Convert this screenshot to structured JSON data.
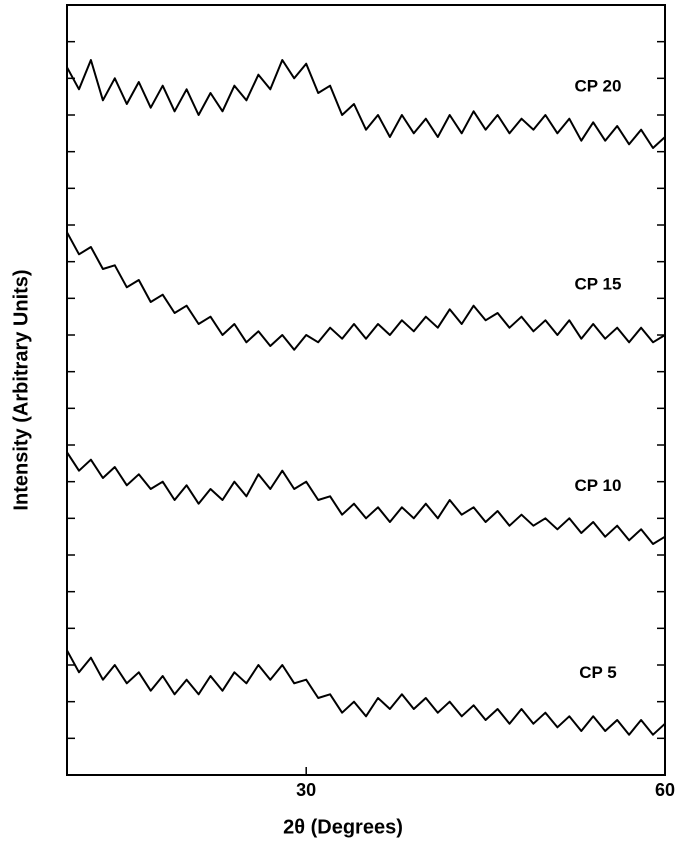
{
  "chart_data": {
    "type": "line",
    "x_label": "2θ (Degrees)",
    "y_label": "Intensity (Arbitrary Units)",
    "x": [
      10,
      11,
      12,
      13,
      14,
      15,
      16,
      17,
      18,
      19,
      20,
      21,
      22,
      23,
      24,
      25,
      26,
      27,
      28,
      29,
      30,
      31,
      32,
      33,
      34,
      35,
      36,
      37,
      38,
      39,
      40,
      41,
      42,
      43,
      44,
      45,
      46,
      47,
      48,
      49,
      50,
      51,
      52,
      53,
      54,
      55,
      56,
      57,
      58,
      59,
      60
    ],
    "xlim": [
      10,
      60
    ],
    "xticks": [
      30,
      60
    ],
    "ylim": [
      0,
      21
    ],
    "yticks": [
      1,
      2,
      3,
      4,
      5,
      6,
      7,
      8,
      9,
      10,
      11,
      12,
      13,
      14,
      15,
      16,
      17,
      18,
      19,
      20
    ],
    "series": [
      {
        "name": "CP 20",
        "color": "#000000",
        "values": [
          19.3,
          18.7,
          19.5,
          18.4,
          19.0,
          18.3,
          18.9,
          18.2,
          18.8,
          18.1,
          18.7,
          18.0,
          18.6,
          18.1,
          18.8,
          18.4,
          19.1,
          18.7,
          19.5,
          19.0,
          19.4,
          18.6,
          18.8,
          18.0,
          18.3,
          17.6,
          18.0,
          17.4,
          18.0,
          17.5,
          17.9,
          17.4,
          18.0,
          17.5,
          18.1,
          17.6,
          18.0,
          17.5,
          17.9,
          17.6,
          18.0,
          17.5,
          17.9,
          17.3,
          17.8,
          17.3,
          17.7,
          17.2,
          17.6,
          17.1,
          17.4
        ]
      },
      {
        "name": "CP 15",
        "color": "#000000",
        "values": [
          14.8,
          14.2,
          14.4,
          13.8,
          13.9,
          13.3,
          13.5,
          12.9,
          13.1,
          12.6,
          12.8,
          12.3,
          12.5,
          12.0,
          12.3,
          11.8,
          12.1,
          11.7,
          12.0,
          11.6,
          12.0,
          11.8,
          12.2,
          11.9,
          12.3,
          11.9,
          12.3,
          12.0,
          12.4,
          12.1,
          12.5,
          12.2,
          12.7,
          12.3,
          12.8,
          12.4,
          12.6,
          12.2,
          12.5,
          12.1,
          12.4,
          12.0,
          12.4,
          11.9,
          12.3,
          11.9,
          12.2,
          11.8,
          12.2,
          11.8,
          12.0
        ]
      },
      {
        "name": "CP 10",
        "color": "#000000",
        "values": [
          8.8,
          8.3,
          8.6,
          8.1,
          8.4,
          7.9,
          8.2,
          7.8,
          8.0,
          7.5,
          7.9,
          7.4,
          7.8,
          7.5,
          8.0,
          7.6,
          8.2,
          7.8,
          8.3,
          7.8,
          8.0,
          7.5,
          7.6,
          7.1,
          7.4,
          7.0,
          7.3,
          6.9,
          7.3,
          7.0,
          7.4,
          7.0,
          7.5,
          7.1,
          7.3,
          6.9,
          7.2,
          6.8,
          7.1,
          6.8,
          7.0,
          6.7,
          7.0,
          6.6,
          6.9,
          6.5,
          6.8,
          6.4,
          6.7,
          6.3,
          6.5
        ]
      },
      {
        "name": "CP 5",
        "color": "#000000",
        "values": [
          3.4,
          2.8,
          3.2,
          2.6,
          3.0,
          2.5,
          2.8,
          2.3,
          2.7,
          2.2,
          2.6,
          2.2,
          2.7,
          2.3,
          2.8,
          2.5,
          3.0,
          2.6,
          3.0,
          2.5,
          2.6,
          2.1,
          2.2,
          1.7,
          2.0,
          1.6,
          2.1,
          1.8,
          2.2,
          1.8,
          2.1,
          1.7,
          2.0,
          1.6,
          1.9,
          1.5,
          1.8,
          1.4,
          1.8,
          1.4,
          1.7,
          1.3,
          1.6,
          1.2,
          1.6,
          1.2,
          1.5,
          1.1,
          1.5,
          1.1,
          1.4
        ]
      }
    ]
  }
}
